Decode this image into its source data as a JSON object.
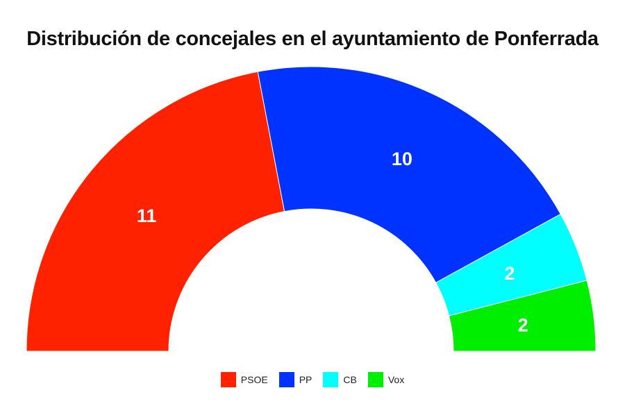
{
  "chart_data": {
    "type": "pie",
    "variant": "half-donut",
    "title": "Distribución de concejales en el ayuntamiento de Ponferrada",
    "categories": [
      "PSOE",
      "PP",
      "CB",
      "Vox"
    ],
    "values": [
      11,
      10,
      2,
      2
    ],
    "colors": [
      "#ff2200",
      "#0033ff",
      "#00ffff",
      "#00ee00"
    ],
    "data_labels": [
      "11",
      "10",
      "2",
      "2"
    ],
    "legend": {
      "position": "bottom-center",
      "entries": [
        "PSOE",
        "PP",
        "CB",
        "Vox"
      ]
    }
  }
}
